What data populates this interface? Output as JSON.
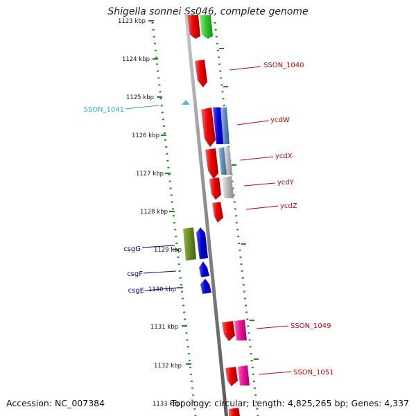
{
  "title": "Shigella sonnei Ss046, complete genome",
  "footer": {
    "accession": "Accession: NC_007384",
    "topology": "Topology: circular; Length: 4,825,265 bp; Genes: 4,337"
  },
  "ticks": [
    "1123 kbp",
    "1124 kbp",
    "1125 kbp",
    "1126 kbp",
    "1127 kbp",
    "1128 kbp",
    "1129 kbp",
    "1130 kbp",
    "1131 kbp",
    "1132 kbp",
    "1133 kbp"
  ],
  "labels": {
    "sson_1040": "SSON_1040",
    "sson_1041": "SSON_1041",
    "ycdw": "ycdW",
    "ycdx": "ycdX",
    "ycdy": "ycdY",
    "ycdz": "ycdZ",
    "csgg": "csgG",
    "csgf": "csgF",
    "csge": "csgE",
    "sson_1049": "SSON_1049",
    "sson_1051": "SSON_1051"
  },
  "colors": {
    "backbone": "#8a8a8a",
    "dots": "#1f8a1f",
    "red_gene": "#ee0000",
    "blue_gene": "#0000dd",
    "green_gene": "#33cc33",
    "olive_gene": "#6b8e23",
    "magenta_gene": "#ee1199",
    "steel_gene": "#5f8fbf",
    "gray_gene": "#bbbbbb",
    "cyan_label": "#22aadd",
    "red_label": "#cc0000",
    "blue_label": "#0000aa"
  }
}
